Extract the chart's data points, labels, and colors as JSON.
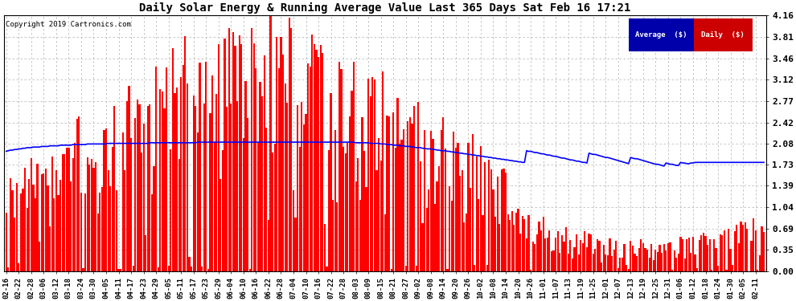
{
  "title": "Daily Solar Energy & Running Average Value Last 365 Days Sat Feb 16 17:21",
  "copyright": "Copyright 2019 Cartronics.com",
  "yticks": [
    0.0,
    0.35,
    0.69,
    1.04,
    1.39,
    1.73,
    2.08,
    2.42,
    2.77,
    3.12,
    3.46,
    3.81,
    4.16
  ],
  "ylim": [
    0,
    4.16
  ],
  "bar_color": "#FF0000",
  "avg_color": "#0000FF",
  "bg_color": "#FFFFFF",
  "grid_color": "#BBBBBB",
  "legend_avg_bg": "#0000AA",
  "legend_daily_bg": "#CC0000",
  "legend_avg_text": "Average  ($)",
  "legend_daily_text": "Daily  ($)",
  "x_labels": [
    "02-16",
    "02-22",
    "02-28",
    "03-06",
    "03-12",
    "03-18",
    "03-24",
    "03-30",
    "04-05",
    "04-11",
    "04-17",
    "04-23",
    "04-29",
    "05-05",
    "05-11",
    "05-17",
    "05-23",
    "05-29",
    "06-04",
    "06-10",
    "06-16",
    "06-22",
    "06-28",
    "07-04",
    "07-10",
    "07-16",
    "07-22",
    "07-28",
    "08-03",
    "08-09",
    "08-15",
    "08-21",
    "08-27",
    "09-02",
    "09-08",
    "09-14",
    "09-20",
    "09-26",
    "10-02",
    "10-08",
    "10-14",
    "10-20",
    "10-26",
    "11-01",
    "11-07",
    "11-13",
    "11-19",
    "11-25",
    "12-01",
    "12-07",
    "12-13",
    "12-19",
    "12-25",
    "12-31",
    "01-06",
    "01-12",
    "01-18",
    "01-24",
    "01-30",
    "02-05",
    "02-11"
  ],
  "n_days": 365,
  "avg_line": [
    1.95,
    1.96,
    1.97,
    1.97,
    1.98,
    1.98,
    1.99,
    1.99,
    2.0,
    2.0,
    2.01,
    2.01,
    2.01,
    2.02,
    2.02,
    2.02,
    2.02,
    2.03,
    2.03,
    2.03,
    2.03,
    2.04,
    2.04,
    2.04,
    2.04,
    2.04,
    2.05,
    2.05,
    2.05,
    2.05,
    2.05,
    2.05,
    2.06,
    2.06,
    2.06,
    2.06,
    2.06,
    2.06,
    2.06,
    2.07,
    2.07,
    2.07,
    2.07,
    2.07,
    2.07,
    2.07,
    2.07,
    2.07,
    2.07,
    2.08,
    2.08,
    2.08,
    2.08,
    2.08,
    2.08,
    2.08,
    2.08,
    2.08,
    2.08,
    2.08,
    2.08,
    2.08,
    2.08,
    2.08,
    2.08,
    2.08,
    2.08,
    2.08,
    2.08,
    2.09,
    2.09,
    2.09,
    2.09,
    2.09,
    2.09,
    2.09,
    2.09,
    2.09,
    2.09,
    2.09,
    2.09,
    2.09,
    2.09,
    2.09,
    2.09,
    2.09,
    2.09,
    2.09,
    2.09,
    2.09,
    2.09,
    2.09,
    2.1,
    2.1,
    2.1,
    2.1,
    2.1,
    2.1,
    2.1,
    2.1,
    2.1,
    2.1,
    2.1,
    2.1,
    2.1,
    2.1,
    2.1,
    2.1,
    2.1,
    2.1,
    2.1,
    2.1,
    2.1,
    2.1,
    2.1,
    2.1,
    2.1,
    2.1,
    2.1,
    2.1,
    2.1,
    2.1,
    2.1,
    2.1,
    2.1,
    2.1,
    2.1,
    2.1,
    2.1,
    2.1,
    2.1,
    2.1,
    2.1,
    2.1,
    2.1,
    2.1,
    2.1,
    2.1,
    2.1,
    2.1,
    2.1,
    2.1,
    2.1,
    2.1,
    2.1,
    2.1,
    2.1,
    2.1,
    2.1,
    2.1,
    2.1,
    2.1,
    2.1,
    2.1,
    2.1,
    2.1,
    2.1,
    2.1,
    2.1,
    2.1,
    2.1,
    2.1,
    2.1,
    2.1,
    2.1,
    2.1,
    2.1,
    2.1,
    2.09,
    2.09,
    2.09,
    2.09,
    2.09,
    2.09,
    2.09,
    2.08,
    2.08,
    2.08,
    2.08,
    2.08,
    2.07,
    2.07,
    2.07,
    2.06,
    2.06,
    2.06,
    2.05,
    2.05,
    2.05,
    2.04,
    2.04,
    2.04,
    2.03,
    2.03,
    2.03,
    2.02,
    2.02,
    2.01,
    2.01,
    2.01,
    2.0,
    2.0,
    1.99,
    1.99,
    1.99,
    1.98,
    1.98,
    1.97,
    1.97,
    1.96,
    1.96,
    1.96,
    1.95,
    1.95,
    1.94,
    1.94,
    1.93,
    1.93,
    1.92,
    1.92,
    1.91,
    1.91,
    1.9,
    1.9,
    1.89,
    1.89,
    1.88,
    1.88,
    1.87,
    1.87,
    1.86,
    1.86,
    1.85,
    1.85,
    1.84,
    1.84,
    1.83,
    1.83,
    1.82,
    1.82,
    1.81,
    1.81,
    1.8,
    1.8,
    1.79,
    1.79,
    1.78,
    1.78,
    1.77,
    1.77,
    1.96,
    1.95,
    1.95,
    1.94,
    1.93,
    1.93,
    1.92,
    1.91,
    1.91,
    1.9,
    1.89,
    1.89,
    1.88,
    1.87,
    1.87,
    1.86,
    1.85,
    1.84,
    1.84,
    1.83,
    1.82,
    1.81,
    1.81,
    1.8,
    1.79,
    1.79,
    1.78,
    1.77,
    1.77,
    1.76,
    1.92,
    1.91,
    1.9,
    1.9,
    1.89,
    1.88,
    1.87,
    1.86,
    1.85,
    1.85,
    1.84,
    1.83,
    1.82,
    1.81,
    1.8,
    1.79,
    1.78,
    1.77,
    1.76,
    1.75,
    1.85,
    1.84,
    1.83,
    1.83,
    1.82,
    1.81,
    1.8,
    1.79,
    1.78,
    1.77,
    1.76,
    1.75,
    1.74,
    1.74,
    1.73,
    1.72,
    1.71,
    1.76,
    1.75,
    1.74,
    1.74,
    1.73,
    1.72,
    1.72,
    1.77,
    1.76,
    1.76,
    1.75,
    1.75,
    1.76,
    1.76,
    1.77,
    1.77,
    1.77,
    1.77,
    1.77,
    1.77,
    1.77,
    1.77,
    1.77,
    1.77,
    1.77,
    1.77,
    1.77,
    1.77,
    1.77,
    1.77,
    1.77,
    1.77,
    1.77,
    1.77,
    1.77,
    1.77,
    1.77,
    1.77,
    1.77,
    1.77,
    1.77,
    1.77,
    1.77,
    1.77,
    1.77,
    1.77,
    1.77,
    1.77
  ]
}
